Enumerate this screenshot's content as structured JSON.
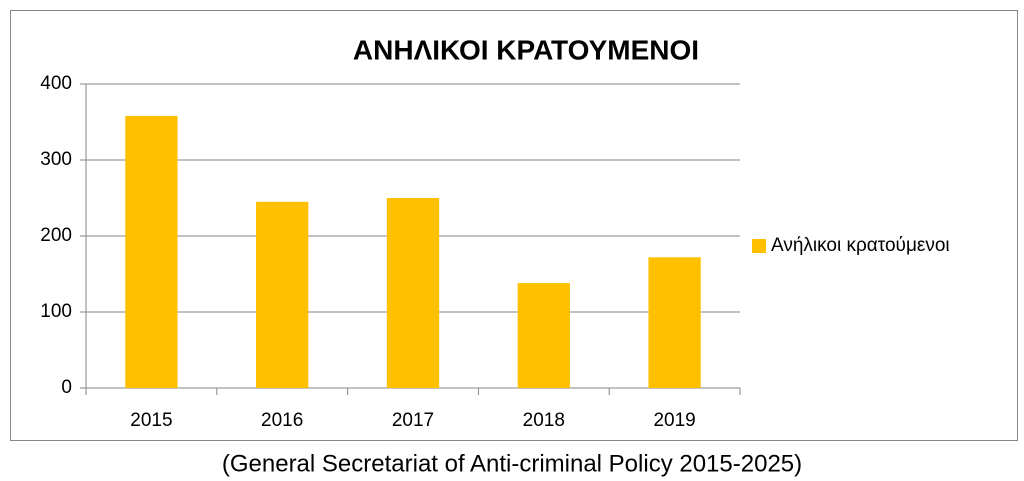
{
  "chart_data": {
    "type": "bar",
    "title": "ΑΝΗΛΙΚΟΙ ΚΡΑΤΟΥΜΕΝΟΙ",
    "categories": [
      "2015",
      "2016",
      "2017",
      "2018",
      "2019"
    ],
    "series": [
      {
        "name": "Ανήλικοι κρατούμενοι",
        "color": "#ffc000",
        "values": [
          358,
          245,
          250,
          138,
          172
        ]
      }
    ],
    "ylim": [
      0,
      400
    ],
    "yticks": [
      0,
      100,
      200,
      300,
      400
    ],
    "grid": true,
    "legend": "right"
  },
  "caption": "(General Secretariat of Anti-criminal Policy 2015-2025)"
}
